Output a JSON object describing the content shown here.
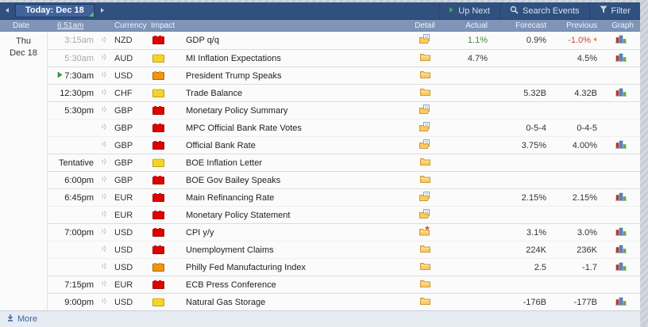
{
  "topbar": {
    "today_label": "Today: Dec 18",
    "up_next_label": "Up Next",
    "search_label": "Search Events",
    "filter_label": "Filter"
  },
  "columns": {
    "date": "Date",
    "time": "6:51am",
    "currency": "Currency",
    "impact": "Impact",
    "detail": "Detail",
    "actual": "Actual",
    "forecast": "Forecast",
    "previous": "Previous",
    "graph": "Graph"
  },
  "date_group": {
    "weekday": "Thu",
    "date": "Dec 18"
  },
  "footer": {
    "more_label": "More"
  },
  "colors": {
    "navbar_bg": "#30517f",
    "header_bg": "#8094b8",
    "impact_red": "#e00000",
    "impact_orange": "#f0950f",
    "impact_yellow": "#f5d329",
    "actual_better_green": "#3c8a3c",
    "revised_red": "#bf4a3f",
    "link_blue": "#3567a8",
    "up_next_green": "#2fa12f"
  },
  "rows": [
    {
      "time": "3:15am",
      "state": "past",
      "currency": "NZD",
      "impact": "red",
      "event": "GDP q/q",
      "detail": "folder-open",
      "actual": "1.1%",
      "actual_state": "better",
      "forecast": "0.9%",
      "previous": "-1.0%",
      "revised": true,
      "graph": true,
      "group_start": true
    },
    {
      "time": "5:30am",
      "state": "past",
      "currency": "AUD",
      "impact": "yellow",
      "event": "MI Inflation Expectations",
      "detail": "folder",
      "actual": "4.7%",
      "actual_state": "neutral",
      "forecast": "",
      "previous": "4.5%",
      "revised": false,
      "graph": true,
      "group_start": true
    },
    {
      "time": "7:30am",
      "state": "upnext",
      "currency": "USD",
      "impact": "orange",
      "event": "President Trump Speaks",
      "detail": "folder",
      "actual": "",
      "actual_state": "",
      "forecast": "",
      "previous": "",
      "revised": false,
      "graph": false,
      "group_start": true
    },
    {
      "time": "12:30pm",
      "state": "future",
      "currency": "CHF",
      "impact": "yellow",
      "event": "Trade Balance",
      "detail": "folder",
      "actual": "",
      "actual_state": "",
      "forecast": "5.32B",
      "previous": "4.32B",
      "revised": false,
      "graph": true,
      "group_start": true
    },
    {
      "time": "5:30pm",
      "state": "future",
      "currency": "GBP",
      "impact": "red",
      "event": "Monetary Policy Summary",
      "detail": "folder-open",
      "actual": "",
      "actual_state": "",
      "forecast": "",
      "previous": "",
      "revised": false,
      "graph": false,
      "group_start": true
    },
    {
      "time": "",
      "state": "future",
      "currency": "GBP",
      "impact": "red",
      "event": "MPC Official Bank Rate Votes",
      "detail": "folder-open",
      "actual": "",
      "actual_state": "",
      "forecast": "0-5-4",
      "previous": "0-4-5",
      "revised": false,
      "graph": false,
      "group_start": false
    },
    {
      "time": "",
      "state": "future",
      "currency": "GBP",
      "impact": "red",
      "event": "Official Bank Rate",
      "detail": "folder-open",
      "actual": "",
      "actual_state": "",
      "forecast": "3.75%",
      "previous": "4.00%",
      "revised": false,
      "graph": true,
      "group_start": false
    },
    {
      "time": "Tentative",
      "state": "future",
      "currency": "GBP",
      "impact": "yellow",
      "event": "BOE Inflation Letter",
      "detail": "folder",
      "actual": "",
      "actual_state": "",
      "forecast": "",
      "previous": "",
      "revised": false,
      "graph": false,
      "group_start": true
    },
    {
      "time": "6:00pm",
      "state": "future",
      "currency": "GBP",
      "impact": "red",
      "event": "BOE Gov Bailey Speaks",
      "detail": "folder",
      "actual": "",
      "actual_state": "",
      "forecast": "",
      "previous": "",
      "revised": false,
      "graph": false,
      "group_start": true
    },
    {
      "time": "6:45pm",
      "state": "future",
      "currency": "EUR",
      "impact": "red",
      "event": "Main Refinancing Rate",
      "detail": "folder-open",
      "actual": "",
      "actual_state": "",
      "forecast": "2.15%",
      "previous": "2.15%",
      "revised": false,
      "graph": true,
      "group_start": true
    },
    {
      "time": "",
      "state": "future",
      "currency": "EUR",
      "impact": "red",
      "event": "Monetary Policy Statement",
      "detail": "folder-open",
      "actual": "",
      "actual_state": "",
      "forecast": "",
      "previous": "",
      "revised": false,
      "graph": false,
      "group_start": false
    },
    {
      "time": "7:00pm",
      "state": "future",
      "currency": "USD",
      "impact": "red",
      "event": "CPI y/y",
      "detail": "folder-alert",
      "actual": "",
      "actual_state": "",
      "forecast": "3.1%",
      "previous": "3.0%",
      "revised": false,
      "graph": true,
      "group_start": true
    },
    {
      "time": "",
      "state": "future",
      "currency": "USD",
      "impact": "red",
      "event": "Unemployment Claims",
      "detail": "folder",
      "actual": "",
      "actual_state": "",
      "forecast": "224K",
      "previous": "236K",
      "revised": false,
      "graph": true,
      "group_start": false
    },
    {
      "time": "",
      "state": "future",
      "currency": "USD",
      "impact": "orange",
      "event": "Philly Fed Manufacturing Index",
      "detail": "folder",
      "actual": "",
      "actual_state": "",
      "forecast": "2.5",
      "previous": "-1.7",
      "revised": false,
      "graph": true,
      "group_start": false
    },
    {
      "time": "7:15pm",
      "state": "future",
      "currency": "EUR",
      "impact": "red",
      "event": "ECB Press Conference",
      "detail": "folder",
      "actual": "",
      "actual_state": "",
      "forecast": "",
      "previous": "",
      "revised": false,
      "graph": false,
      "group_start": true
    },
    {
      "time": "9:00pm",
      "state": "future",
      "currency": "USD",
      "impact": "yellow",
      "event": "Natural Gas Storage",
      "detail": "folder",
      "actual": "",
      "actual_state": "",
      "forecast": "-176B",
      "previous": "-177B",
      "revised": false,
      "graph": true,
      "group_start": true
    }
  ]
}
